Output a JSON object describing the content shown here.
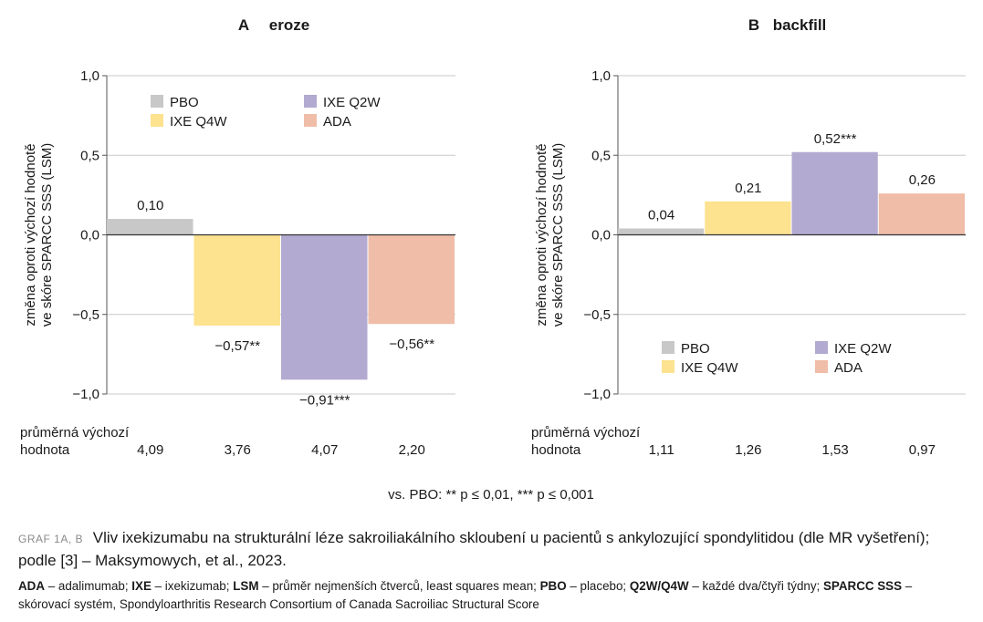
{
  "chart_data": [
    {
      "type": "bar",
      "panel": "A",
      "title": "eroze",
      "ylabel": "změna oproti výchozí hodnotě ve skóre SPARCC SSS (LSM)",
      "ylim": [
        -1.0,
        1.0
      ],
      "yticks": [
        "1,0",
        "0,5",
        "0,0",
        "-0,5",
        "-1,0"
      ],
      "categories": [
        "PBO",
        "IXE Q4W",
        "IXE Q2W",
        "ADA"
      ],
      "values": [
        0.1,
        -0.57,
        -0.91,
        -0.56
      ],
      "data_labels": [
        "0,10",
        "−0,57**",
        "−0,91***",
        "−0,56**"
      ],
      "colors": [
        "#c8c8c8",
        "#fde28f",
        "#b2aad0",
        "#efbda8"
      ],
      "legend_position": "top",
      "baseline_label": [
        "průměrná výchozí",
        "hodnota"
      ],
      "baseline_values": [
        "4,09",
        "3,76",
        "4,07",
        "2,20"
      ]
    },
    {
      "type": "bar",
      "panel": "B",
      "title": "backfill",
      "ylabel": "změna oproti výchozí hodnotě ve skóre SPARCC SSS (LSM)",
      "ylim": [
        -1.0,
        1.0
      ],
      "yticks": [
        "1,0",
        "0,5",
        "0,0",
        "-0,5",
        "-1,0"
      ],
      "categories": [
        "PBO",
        "IXE Q4W",
        "IXE Q2W",
        "ADA"
      ],
      "values": [
        0.04,
        0.21,
        0.52,
        0.26
      ],
      "data_labels": [
        "0,04",
        "0,21",
        "0,52***",
        "0,26"
      ],
      "colors": [
        "#c8c8c8",
        "#fde28f",
        "#b2aad0",
        "#efbda8"
      ],
      "legend_position": "bottom",
      "baseline_label": [
        "průměrná výchozí",
        "hodnota"
      ],
      "baseline_values": [
        "1,11",
        "1,26",
        "1,53",
        "0,97"
      ]
    }
  ],
  "significance_note": "vs. PBO: ** p ≤ 0,01, *** p ≤ 0,001",
  "caption": {
    "tag": "GRAF 1A, B",
    "title": "Vliv ixekizumabu na strukturální léze sakroiliakálního skloubení u pacientů s ankylozující spondylitidou (dle MR vyšetření); podle [3] – Maksymowych, et al., 2023.",
    "abbreviations": [
      {
        "term": "ADA",
        "text": "adalimumab"
      },
      {
        "term": "IXE",
        "text": "ixekizumab"
      },
      {
        "term": "LSM",
        "text": "průměr nejmenších čtverců, least squares mean"
      },
      {
        "term": "PBO",
        "text": "placebo"
      },
      {
        "term": "Q2W/Q4W",
        "text": "každé dva/čtyři týdny"
      },
      {
        "term": "SPARCC SSS",
        "text": "skórovací systém, Spondyloarthritis Research Consortium of Canada Sacroiliac Structural Score"
      }
    ]
  }
}
